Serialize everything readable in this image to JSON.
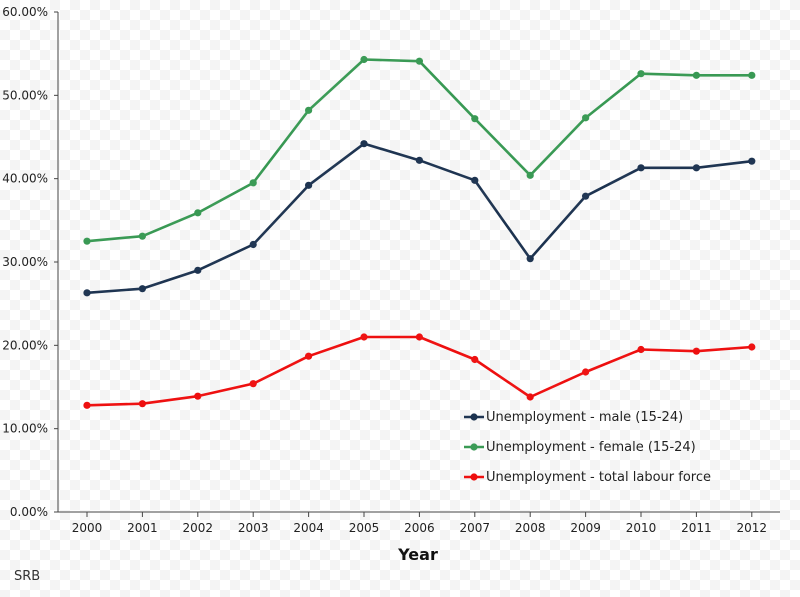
{
  "chart_data": {
    "type": "line",
    "title": "",
    "xlabel": "Year",
    "ylabel": "",
    "ylim": [
      0,
      60
    ],
    "yticks": [
      "0.00%",
      "10.00%",
      "20.00%",
      "30.00%",
      "40.00%",
      "50.00%",
      "60.00%"
    ],
    "categories": [
      "2000",
      "2001",
      "2002",
      "2003",
      "2004",
      "2005",
      "2006",
      "2007",
      "2008",
      "2009",
      "2010",
      "2011",
      "2012"
    ],
    "series": [
      {
        "name": "Unemployment - male (15-24)",
        "color": "#1f3552",
        "values": [
          26.3,
          26.8,
          29.0,
          32.1,
          39.2,
          44.2,
          42.2,
          39.8,
          30.4,
          37.9,
          41.3,
          41.3,
          42.1
        ]
      },
      {
        "name": "Unemployment - female (15-24)",
        "color": "#3a9a55",
        "values": [
          32.5,
          33.1,
          35.9,
          39.5,
          48.2,
          54.3,
          54.1,
          47.2,
          40.4,
          47.3,
          52.6,
          52.4,
          52.4
        ]
      },
      {
        "name": "Unemployment - total labour force",
        "color": "#ee1111",
        "values": [
          12.8,
          13.0,
          13.9,
          15.4,
          18.7,
          21.0,
          21.0,
          18.3,
          13.8,
          16.8,
          19.5,
          19.3,
          19.8
        ]
      }
    ],
    "legend_position": "bottom-right",
    "grid": false,
    "footer_label": "SRB"
  }
}
